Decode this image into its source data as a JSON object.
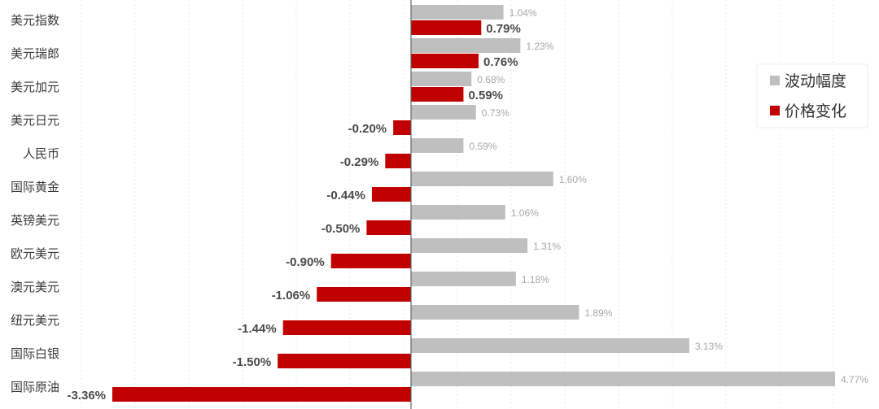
{
  "chart_data": {
    "type": "bar",
    "orientation": "horizontal",
    "categories": [
      "美元指数",
      "美元瑞郎",
      "美元加元",
      "美元日元",
      "人民币",
      "国际黄金",
      "英镑美元",
      "欧元美元",
      "澳元美元",
      "纽元美元",
      "国际白银",
      "国际原油"
    ],
    "series": [
      {
        "name": "波动幅度",
        "color": "#bfbfbf",
        "values": [
          1.04,
          1.23,
          0.68,
          0.73,
          0.59,
          1.6,
          1.06,
          1.31,
          1.18,
          1.89,
          3.13,
          4.77
        ],
        "labels": [
          "1.04%",
          "1.23%",
          "0.68%",
          "0.73%",
          "0.59%",
          "1.60%",
          "1.06%",
          "1.31%",
          "1.18%",
          "1.89%",
          "3.13%",
          "4.77%"
        ]
      },
      {
        "name": "价格变化",
        "color": "#c00000",
        "values": [
          0.79,
          0.76,
          0.59,
          -0.2,
          -0.29,
          -0.44,
          -0.5,
          -0.9,
          -1.06,
          -1.44,
          -1.5,
          -3.36
        ],
        "labels": [
          "0.79%",
          "0.76%",
          "0.59%",
          "-0.20%",
          "-0.29%",
          "-0.44%",
          "-0.50%",
          "-0.90%",
          "-1.06%",
          "-1.44%",
          "-1.50%",
          "-3.36%"
        ]
      }
    ],
    "xlim": [
      -3.36,
      4.77
    ],
    "grid": true,
    "legend": "right"
  }
}
